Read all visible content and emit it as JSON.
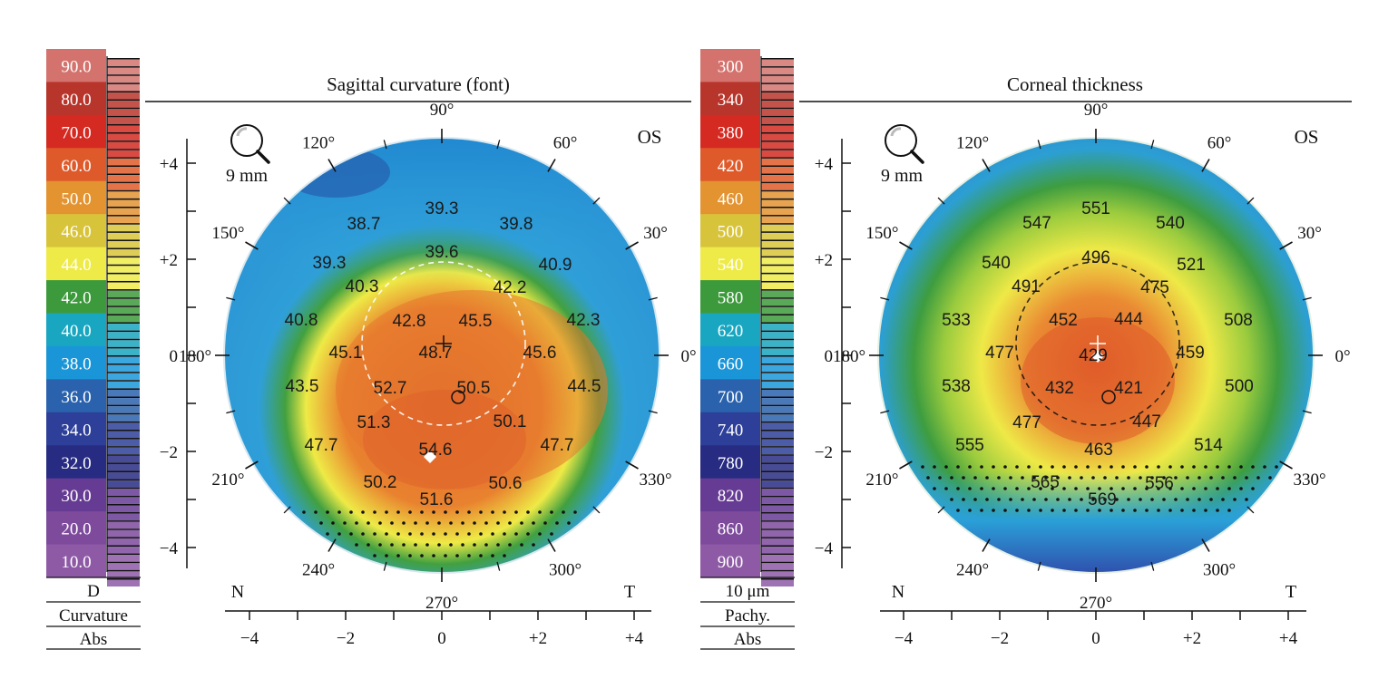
{
  "panels": [
    {
      "id": "curvature",
      "title": "Sagittal curvature (font)",
      "eye": "OS",
      "zoom_label": "9 mm",
      "nasal_label": "N",
      "temporal_label": "T",
      "scale": {
        "values": [
          "90.0",
          "80.0",
          "70.0",
          "60.0",
          "50.0",
          "46.0",
          "44.0",
          "42.0",
          "40.0",
          "38.0",
          "36.0",
          "34.0",
          "32.0",
          "30.0",
          "20.0",
          "10.0"
        ],
        "colors": [
          "#d4736e",
          "#b8352b",
          "#d42a22",
          "#df5a2a",
          "#e39330",
          "#d8c43a",
          "#eeeb48",
          "#3d9a3c",
          "#18a6c0",
          "#1a96d8",
          "#2a62ad",
          "#2d3f98",
          "#282b82",
          "#663b94",
          "#7d4a9c",
          "#8e5aa6"
        ],
        "footer": [
          "D",
          "Curvature",
          "Abs"
        ]
      },
      "angles": [
        "90°",
        "60°",
        "30°",
        "0°",
        "330°",
        "300°",
        "270°",
        "240°",
        "210°",
        "180°",
        "150°",
        "120°"
      ],
      "y_ticks": [
        "+4",
        "+2",
        "0",
        "−2",
        "−4"
      ],
      "x_ticks": [
        "−4",
        "−2",
        "0",
        "+2",
        "+4"
      ],
      "map_values": [
        "39.3",
        "38.7",
        "39.8",
        "39.6",
        "39.3",
        "40.9",
        "40.3",
        "42.2",
        "40.8",
        "42.8",
        "45.5",
        "42.3",
        "45.1",
        "48.7",
        "45.6",
        "43.5",
        "52.7",
        "50.5",
        "44.5",
        "51.3",
        "50.1",
        "47.7",
        "54.6",
        "47.7",
        "50.2",
        "50.6",
        "51.6"
      ],
      "colors": {
        "ring_outer": "#2f9fd8",
        "band_green": "#3e9d3f",
        "band_yellow": "#eeea46",
        "core": "#e4662c",
        "hot": "#d9542a"
      }
    },
    {
      "id": "thickness",
      "title": "Corneal thickness",
      "eye": "OS",
      "zoom_label": "9 mm",
      "nasal_label": "N",
      "temporal_label": "T",
      "scale": {
        "values": [
          "300",
          "340",
          "380",
          "420",
          "460",
          "500",
          "540",
          "580",
          "620",
          "660",
          "700",
          "740",
          "780",
          "820",
          "860",
          "900"
        ],
        "colors": [
          "#d4736e",
          "#b8352b",
          "#d42a22",
          "#df5a2a",
          "#e39330",
          "#d8c43a",
          "#eeeb48",
          "#3d9a3c",
          "#18a6c0",
          "#1a96d8",
          "#2a62ad",
          "#2d3f98",
          "#282b82",
          "#663b94",
          "#7d4a9c",
          "#8e5aa6"
        ],
        "footer": [
          "10 μm",
          "Pachy.",
          "Abs"
        ]
      },
      "angles": [
        "90°",
        "60°",
        "30°",
        "0°",
        "330°",
        "300°",
        "270°",
        "240°",
        "210°",
        "180°",
        "150°",
        "120°"
      ],
      "y_ticks": [
        "+4",
        "+2",
        "0",
        "−2",
        "−4"
      ],
      "x_ticks": [
        "−4",
        "−2",
        "0",
        "+2",
        "+4"
      ],
      "map_values": [
        "551",
        "547",
        "540",
        "496",
        "540",
        "521",
        "491",
        "475",
        "533",
        "452",
        "444",
        "508",
        "477",
        "429",
        "459",
        "538",
        "432",
        "421",
        "500",
        "477",
        "447",
        "555",
        "463",
        "514",
        "565",
        "556",
        "569"
      ],
      "colors": {
        "ring_outer": "#3e9d3f",
        "band_green": "#3e9d3f",
        "band_yellow": "#eeea46",
        "core": "#e4662c",
        "hot": "#d9542a"
      }
    }
  ]
}
